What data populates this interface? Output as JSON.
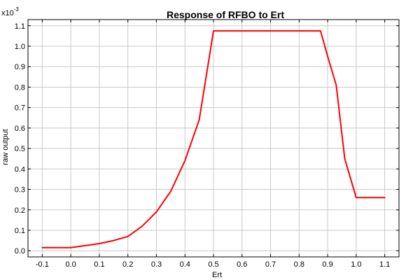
{
  "chart_data": {
    "type": "line",
    "title": "Response of RFBO to Ert",
    "xlabel": "Ert",
    "ylabel": "raw output",
    "y_multiplier_label": "x10",
    "y_multiplier_exponent": "-3",
    "xlim": [
      -0.15,
      1.15
    ],
    "ylim": [
      -0.03,
      1.13
    ],
    "x_ticks": [
      -0.1,
      0.0,
      0.1,
      0.2,
      0.3,
      0.4,
      0.5,
      0.6,
      0.7,
      0.8,
      0.9,
      1.0,
      1.1
    ],
    "x_tick_labels": [
      "-0.1",
      "0.0",
      "0.1",
      "0.2",
      "0.3",
      "0.4",
      "0.5",
      "0.6",
      "0.7",
      "0.8",
      "0.9",
      "1.0",
      "1.1"
    ],
    "y_ticks": [
      0.0,
      0.1,
      0.2,
      0.3,
      0.4,
      0.5,
      0.6,
      0.7,
      0.8,
      0.9,
      1.0,
      1.1
    ],
    "y_tick_labels": [
      "0.0",
      "0.1",
      "0.2",
      "0.3",
      "0.4",
      "0.5",
      "0.6",
      "0.7",
      "0.8",
      "0.9",
      "1.0",
      "1.1"
    ],
    "grid": true,
    "series": [
      {
        "color": "#ff0000",
        "x": [
          -0.1,
          0.0,
          0.05,
          0.1,
          0.15,
          0.2,
          0.25,
          0.3,
          0.35,
          0.4,
          0.45,
          0.5,
          0.6,
          0.7,
          0.8,
          0.875,
          0.9,
          0.93,
          0.96,
          1.0,
          1.05,
          1.1
        ],
        "y": [
          0.015,
          0.015,
          0.025,
          0.035,
          0.05,
          0.07,
          0.12,
          0.19,
          0.29,
          0.44,
          0.64,
          1.075,
          1.075,
          1.075,
          1.075,
          1.075,
          0.95,
          0.81,
          0.45,
          0.26,
          0.26,
          0.26
        ]
      }
    ]
  }
}
